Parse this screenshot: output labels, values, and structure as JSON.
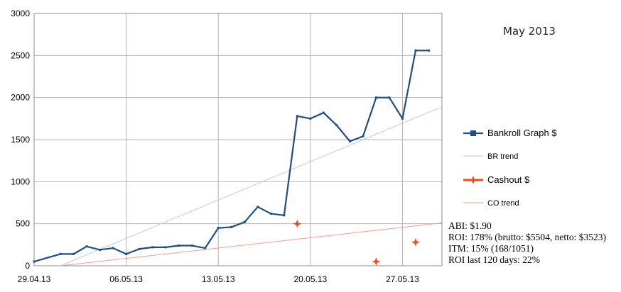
{
  "chart_data": {
    "type": "line",
    "title": "May 2013",
    "xlabel": "",
    "ylabel": "",
    "x_ticks": [
      "29.04.13",
      "06.05.13",
      "13.05.13",
      "20.05.13",
      "27.05.13"
    ],
    "xlim": [
      "2013-04-29",
      "2013-05-30"
    ],
    "ylim": [
      0,
      3000
    ],
    "y_ticks": [
      0,
      500,
      1000,
      1500,
      2000,
      2500,
      3000
    ],
    "grid": true,
    "legend_position": "right",
    "series": [
      {
        "name": "Bankroll Graph $",
        "type": "line",
        "color": "#1f4e87",
        "x": [
          "2013-04-29",
          "2013-05-01",
          "2013-05-02",
          "2013-05-03",
          "2013-05-04",
          "2013-05-05",
          "2013-05-06",
          "2013-05-07",
          "2013-05-08",
          "2013-05-09",
          "2013-05-10",
          "2013-05-11",
          "2013-05-12",
          "2013-05-13",
          "2013-05-14",
          "2013-05-15",
          "2013-05-16",
          "2013-05-17",
          "2013-05-18",
          "2013-05-19",
          "2013-05-20",
          "2013-05-21",
          "2013-05-22",
          "2013-05-23",
          "2013-05-24",
          "2013-05-25",
          "2013-05-26",
          "2013-05-27",
          "2013-05-28",
          "2013-05-29"
        ],
        "y": [
          50,
          140,
          140,
          230,
          190,
          210,
          140,
          200,
          220,
          220,
          240,
          240,
          210,
          450,
          460,
          520,
          700,
          620,
          600,
          1780,
          1750,
          1820,
          1670,
          1480,
          1540,
          2000,
          2000,
          1750,
          2560,
          2560
        ]
      },
      {
        "name": "BR trend",
        "type": "line",
        "color": "#b9cfe0",
        "x": [
          "2013-05-01",
          "2013-05-30"
        ],
        "y": [
          0,
          1890
        ]
      },
      {
        "name": "Cashout $",
        "type": "scatter",
        "color": "#f04a18",
        "x": [
          "2013-05-19",
          "2013-05-25",
          "2013-05-28"
        ],
        "y": [
          500,
          50,
          280
        ]
      },
      {
        "name": "CO trend",
        "type": "line",
        "color": "#f2a08a",
        "x": [
          "2013-05-01",
          "2013-05-30"
        ],
        "y": [
          0,
          510
        ]
      }
    ]
  },
  "stats": [
    "ABI: $1.90",
    "ROI: 178% (brutto: $5504, netto: $3523)",
    "ITM: 15% (168/1051)",
    "ROI last 120 days: 22%"
  ]
}
